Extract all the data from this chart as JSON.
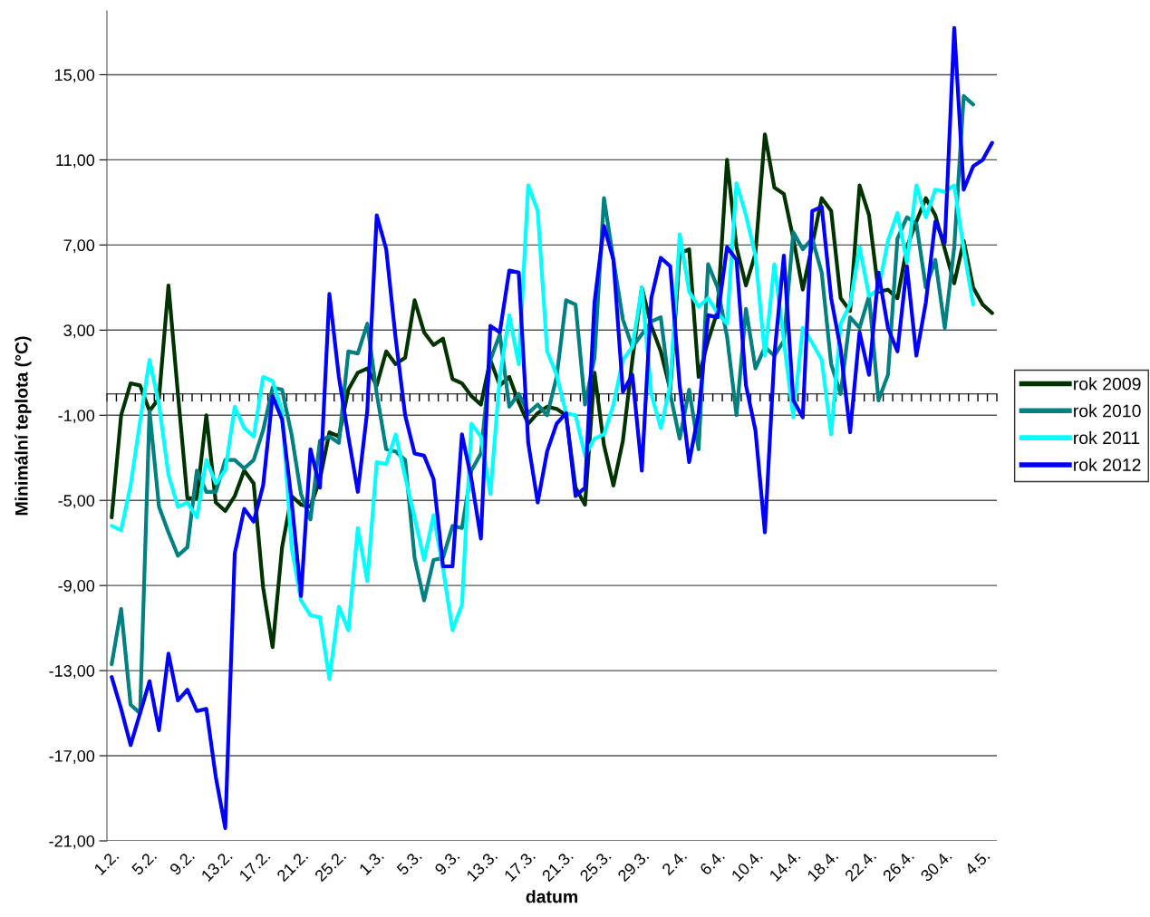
{
  "chart_data": {
    "type": "line",
    "xlabel": "datum",
    "ylabel": "Minimální teplota (°C)",
    "categories": [
      "1.2.",
      null,
      null,
      null,
      "5.2.",
      null,
      null,
      null,
      "9.2.",
      null,
      null,
      null,
      "13.2.",
      null,
      null,
      null,
      "17.2.",
      null,
      null,
      null,
      "21.2.",
      null,
      null,
      null,
      "25.2.",
      null,
      null,
      null,
      "1.3.",
      null,
      null,
      null,
      "5.3.",
      null,
      null,
      null,
      "9.3.",
      null,
      null,
      null,
      "13.3.",
      null,
      null,
      null,
      "17.3.",
      null,
      null,
      null,
      "21.3.",
      null,
      null,
      null,
      "25.3.",
      null,
      null,
      null,
      "29.3.",
      null,
      null,
      null,
      "2.4.",
      null,
      null,
      null,
      "6.4.",
      null,
      null,
      null,
      "10.4.",
      null,
      null,
      null,
      "14.4.",
      null,
      null,
      null,
      "18.4.",
      null,
      null,
      null,
      "22.4.",
      null,
      null,
      null,
      "26.4.",
      null,
      null,
      null,
      "30.4.",
      null,
      null,
      null,
      "4.5.",
      null
    ],
    "series": [
      {
        "name": "rok 2009",
        "color": "#003300",
        "values": [
          -5.8,
          -1.0,
          0.5,
          0.4,
          -0.8,
          -0.2,
          5.1,
          0.0,
          -4.9,
          -4.9,
          -1.0,
          -5.1,
          -5.5,
          -4.8,
          -3.6,
          -4.2,
          -9.1,
          -11.9,
          -7.2,
          -4.8,
          -5.2,
          -5.3,
          -4.0,
          -1.8,
          -2.0,
          0.2,
          1.0,
          1.2,
          0.4,
          2.0,
          1.4,
          1.7,
          4.4,
          2.9,
          2.3,
          2.6,
          0.7,
          0.5,
          -0.1,
          -0.5,
          1.6,
          0.4,
          0.8,
          -0.4,
          -1.4,
          -0.9,
          -0.6,
          -0.7,
          -1.0,
          -4.4,
          -5.2,
          1.0,
          -2.4,
          -4.3,
          -2.2,
          1.6,
          5.0,
          3.2,
          2.0,
          0.2,
          6.6,
          6.8,
          0.8,
          2.5,
          3.9,
          11.0,
          6.9,
          5.1,
          6.6,
          12.2,
          9.7,
          9.4,
          7.3,
          4.9,
          7.0,
          9.2,
          8.6,
          4.5,
          3.9,
          9.8,
          8.4,
          4.8,
          4.9,
          4.5,
          6.9,
          8.1,
          9.2,
          8.4,
          6.8,
          5.2,
          7.2,
          5.0,
          4.2,
          3.8
        ]
      },
      {
        "name": "rok 2010",
        "color": "#008080",
        "values": [
          -12.7,
          -10.1,
          -14.6,
          -15.0,
          -0.8,
          -5.3,
          -6.5,
          -7.6,
          -7.2,
          -3.6,
          -4.6,
          -4.6,
          -3.1,
          -3.1,
          -3.5,
          -3.1,
          -1.7,
          0.3,
          0.2,
          -1.9,
          -4.7,
          -5.9,
          -2.2,
          -2.0,
          -2.3,
          2.0,
          1.9,
          3.3,
          0.0,
          -2.6,
          -2.7,
          -3.1,
          -7.7,
          -9.7,
          -7.8,
          -7.7,
          -6.2,
          -6.3,
          -3.6,
          -2.8,
          1.6,
          2.8,
          -0.6,
          0.0,
          -0.9,
          -0.5,
          -1.0,
          0.8,
          4.4,
          4.2,
          -0.5,
          1.7,
          9.2,
          6.3,
          3.5,
          2.2,
          2.8,
          3.4,
          3.6,
          0.0,
          -2.1,
          0.2,
          -2.6,
          6.1,
          5.0,
          2.7,
          -1.0,
          4.0,
          1.2,
          2.2,
          1.8,
          2.5,
          7.6,
          6.8,
          7.3,
          5.7,
          1.4,
          0.0,
          3.6,
          3.1,
          4.6,
          -0.3,
          0.9,
          7.3,
          8.3,
          8.0,
          5.0,
          6.3,
          3.1,
          6.9,
          14.0,
          13.6,
          null,
          null
        ]
      },
      {
        "name": "rok 2011",
        "color": "#00ffff",
        "values": [
          -6.2,
          -6.4,
          -4.3,
          -1.3,
          1.6,
          -0.5,
          -3.8,
          -5.3,
          -5.1,
          -5.8,
          -3.1,
          -4.2,
          -3.6,
          -0.6,
          -1.6,
          -2.0,
          0.8,
          0.6,
          -0.8,
          -7.2,
          -9.7,
          -10.4,
          -10.5,
          -13.4,
          -10.0,
          -11.1,
          -6.3,
          -8.8,
          -3.2,
          -3.3,
          -1.9,
          -3.9,
          -5.8,
          -7.8,
          -5.7,
          -8.2,
          -11.1,
          -9.9,
          -1.4,
          -2.0,
          -4.7,
          0.8,
          3.7,
          1.4,
          9.8,
          8.6,
          2.0,
          0.9,
          -0.9,
          -1.0,
          -2.9,
          -2.1,
          -1.9,
          -0.5,
          1.6,
          2.2,
          5.0,
          0.0,
          -1.6,
          0.4,
          7.5,
          4.8,
          4.1,
          4.5,
          3.8,
          3.3,
          9.9,
          8.4,
          6.5,
          1.8,
          6.1,
          2.5,
          -1.1,
          3.1,
          2.4,
          1.6,
          -1.9,
          3.3,
          4.2,
          6.9,
          4.6,
          4.9,
          7.2,
          8.5,
          6.2,
          9.8,
          8.3,
          9.6,
          9.5,
          9.8,
          6.8,
          4.2,
          null,
          null
        ]
      },
      {
        "name": "rok 2012",
        "color": "#0000ff",
        "values": [
          -13.3,
          -14.8,
          -16.5,
          -15.0,
          -13.5,
          -15.8,
          -12.2,
          -14.4,
          -13.9,
          -14.9,
          -14.8,
          -18.0,
          -20.4,
          -7.5,
          -5.4,
          -6.0,
          -4.3,
          -0.1,
          -1.2,
          -5.0,
          -9.5,
          -2.6,
          -4.4,
          4.7,
          0.8,
          -2.0,
          -4.6,
          -0.8,
          8.4,
          6.8,
          2.6,
          -1.0,
          -2.8,
          -2.9,
          -4.0,
          -8.1,
          -8.1,
          -1.9,
          -4.0,
          -6.8,
          3.2,
          2.9,
          5.8,
          5.7,
          -2.3,
          -5.1,
          -2.7,
          -1.4,
          -0.9,
          -4.8,
          -4.4,
          4.3,
          7.9,
          6.3,
          0.1,
          0.9,
          -3.6,
          4.5,
          6.4,
          6.0,
          0.4,
          -3.2,
          -0.9,
          3.7,
          3.6,
          6.9,
          6.3,
          0.4,
          -1.7,
          -6.5,
          1.8,
          6.5,
          -0.3,
          -1.1,
          8.6,
          8.8,
          4.5,
          2.1,
          -1.8,
          2.9,
          0.9,
          5.7,
          3.1,
          2.0,
          6.0,
          1.8,
          4.3,
          8.1,
          7.1,
          17.2,
          9.6,
          10.7,
          11.0,
          11.8
        ]
      }
    ],
    "ylim": [
      -21,
      18
    ],
    "yticks": [
      {
        "value": -21,
        "label": "-21,00"
      },
      {
        "value": -17,
        "label": "-17,00"
      },
      {
        "value": -13,
        "label": "-13,00"
      },
      {
        "value": -9,
        "label": "-9,00"
      },
      {
        "value": -5,
        "label": "-5,00"
      },
      {
        "value": -1,
        "label": "-1,00"
      },
      {
        "value": 3,
        "label": "3,00"
      },
      {
        "value": 7,
        "label": "7,00"
      },
      {
        "value": 11,
        "label": "11,00"
      },
      {
        "value": 15,
        "label": "15,00"
      }
    ],
    "grid": "y",
    "legend": "right"
  }
}
